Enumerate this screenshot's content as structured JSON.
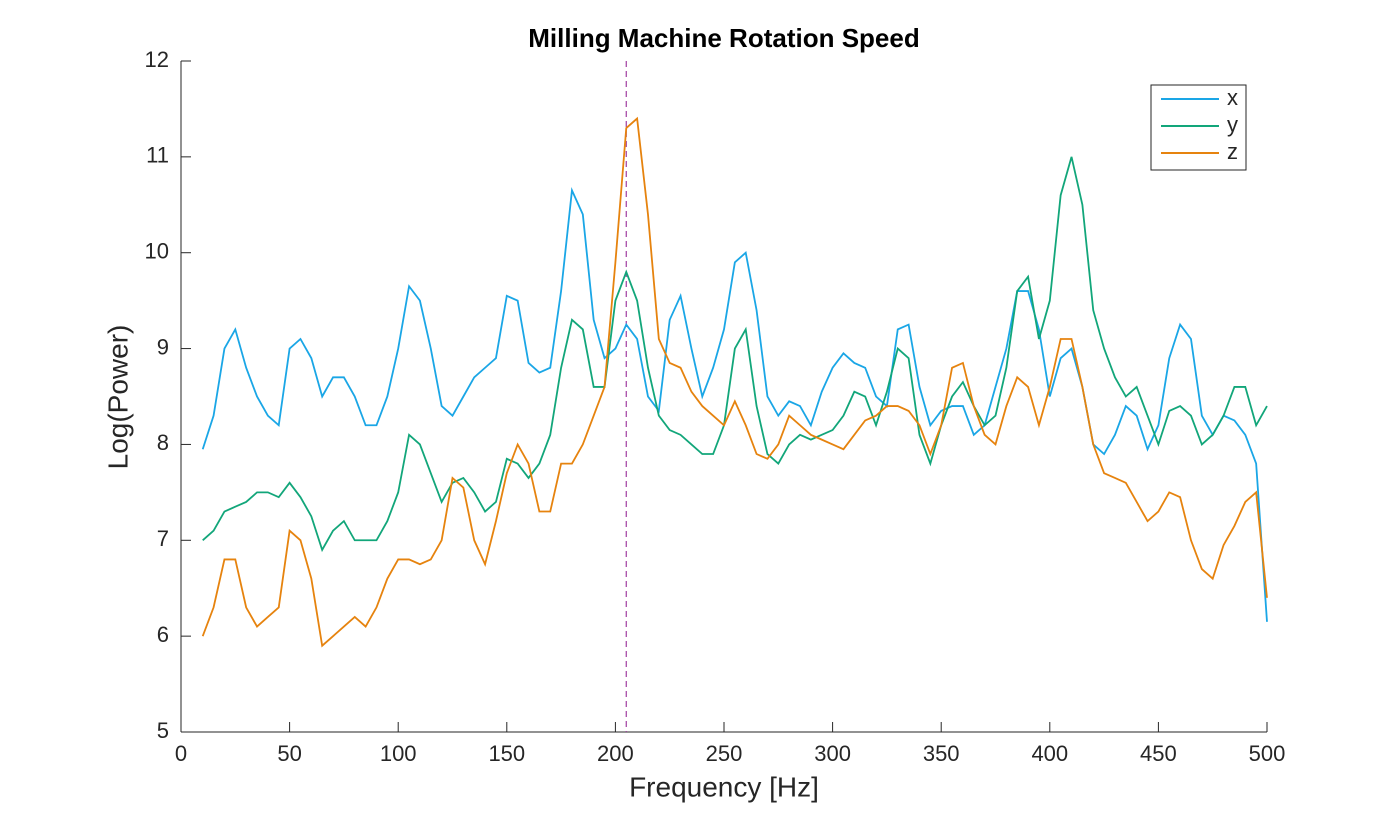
{
  "chart_data": {
    "type": "line",
    "title": "Milling Machine Rotation Speed",
    "x_label": "Frequency [Hz]",
    "y_label": "Log(Power)",
    "x": [
      10,
      15,
      20,
      25,
      30,
      35,
      40,
      45,
      50,
      55,
      60,
      65,
      70,
      75,
      80,
      85,
      90,
      95,
      100,
      105,
      110,
      115,
      120,
      125,
      130,
      135,
      140,
      145,
      150,
      155,
      160,
      165,
      170,
      175,
      180,
      185,
      190,
      195,
      200,
      205,
      210,
      215,
      220,
      225,
      230,
      235,
      240,
      245,
      250,
      255,
      260,
      265,
      270,
      275,
      280,
      285,
      290,
      295,
      300,
      305,
      310,
      315,
      320,
      325,
      330,
      335,
      340,
      345,
      350,
      355,
      360,
      365,
      370,
      375,
      380,
      385,
      390,
      395,
      400,
      405,
      410,
      415,
      420,
      425,
      430,
      435,
      440,
      445,
      450,
      455,
      460,
      465,
      470,
      475,
      480,
      485,
      490,
      495,
      500
    ],
    "series": [
      {
        "name": "x",
        "color": "#1aa6e6",
        "values": [
          7.95,
          8.3,
          9.0,
          9.2,
          8.8,
          8.5,
          8.3,
          8.2,
          9.0,
          9.1,
          8.9,
          8.5,
          8.7,
          8.7,
          8.5,
          8.2,
          8.2,
          8.5,
          9.0,
          9.65,
          9.5,
          9.0,
          8.4,
          8.3,
          8.5,
          8.7,
          8.8,
          8.9,
          9.55,
          9.5,
          8.85,
          8.75,
          8.8,
          9.6,
          10.65,
          10.4,
          9.3,
          8.9,
          9.0,
          9.25,
          9.1,
          8.5,
          8.35,
          9.3,
          9.55,
          9.0,
          8.5,
          8.8,
          9.2,
          9.9,
          10.0,
          9.4,
          8.5,
          8.3,
          8.45,
          8.4,
          8.2,
          8.55,
          8.8,
          8.95,
          8.85,
          8.8,
          8.5,
          8.4,
          9.2,
          9.25,
          8.6,
          8.2,
          8.35,
          8.4,
          8.4,
          8.1,
          8.2,
          8.6,
          9.0,
          9.6,
          9.6,
          9.2,
          8.5,
          8.9,
          9.0,
          8.6,
          8.0,
          7.9,
          8.1,
          8.4,
          8.3,
          7.95,
          8.2,
          8.9,
          9.25,
          9.1,
          8.3,
          8.1,
          8.3,
          8.25,
          8.1,
          7.8,
          6.15
        ]
      },
      {
        "name": "y",
        "color": "#12a67a",
        "values": [
          7.0,
          7.1,
          7.3,
          7.35,
          7.4,
          7.5,
          7.5,
          7.45,
          7.6,
          7.45,
          7.25,
          6.9,
          7.1,
          7.2,
          7.0,
          7.0,
          7.0,
          7.2,
          7.5,
          8.1,
          8.0,
          7.7,
          7.4,
          7.6,
          7.65,
          7.5,
          7.3,
          7.4,
          7.85,
          7.8,
          7.65,
          7.8,
          8.1,
          8.8,
          9.3,
          9.2,
          8.6,
          8.6,
          9.5,
          9.8,
          9.5,
          8.8,
          8.3,
          8.15,
          8.1,
          8.0,
          7.9,
          7.9,
          8.2,
          9.0,
          9.2,
          8.4,
          7.9,
          7.8,
          8.0,
          8.1,
          8.05,
          8.1,
          8.15,
          8.3,
          8.55,
          8.5,
          8.2,
          8.55,
          9.0,
          8.9,
          8.1,
          7.8,
          8.2,
          8.5,
          8.65,
          8.4,
          8.2,
          8.3,
          8.8,
          9.6,
          9.75,
          9.1,
          9.5,
          10.6,
          11.0,
          10.5,
          9.4,
          9.0,
          8.7,
          8.5,
          8.6,
          8.3,
          8.0,
          8.35,
          8.4,
          8.3,
          8.0,
          8.1,
          8.3,
          8.6,
          8.6,
          8.2,
          8.4
        ]
      },
      {
        "name": "z",
        "color": "#e6830e",
        "values": [
          6.0,
          6.3,
          6.8,
          6.8,
          6.3,
          6.1,
          6.2,
          6.3,
          7.1,
          7.0,
          6.6,
          5.9,
          6.0,
          6.1,
          6.2,
          6.1,
          6.3,
          6.6,
          6.8,
          6.8,
          6.75,
          6.8,
          7.0,
          7.65,
          7.55,
          7.0,
          6.75,
          7.2,
          7.7,
          8.0,
          7.8,
          7.3,
          7.3,
          7.8,
          7.8,
          8.0,
          8.3,
          8.6,
          9.9,
          11.3,
          11.4,
          10.4,
          9.1,
          8.85,
          8.8,
          8.55,
          8.4,
          8.3,
          8.2,
          8.45,
          8.2,
          7.9,
          7.85,
          8.0,
          8.3,
          8.2,
          8.1,
          8.05,
          8.0,
          7.95,
          8.1,
          8.25,
          8.3,
          8.4,
          8.4,
          8.35,
          8.2,
          7.9,
          8.2,
          8.8,
          8.85,
          8.4,
          8.1,
          8.0,
          8.4,
          8.7,
          8.6,
          8.2,
          8.6,
          9.1,
          9.1,
          8.6,
          8.0,
          7.7,
          7.65,
          7.6,
          7.4,
          7.2,
          7.3,
          7.5,
          7.45,
          7.0,
          6.7,
          6.6,
          6.95,
          7.15,
          7.4,
          7.5,
          6.4
        ]
      }
    ],
    "xlim": [
      0,
      500
    ],
    "xticks": [
      0,
      50,
      100,
      150,
      200,
      250,
      300,
      350,
      400,
      450,
      500
    ],
    "ylim": [
      5,
      12
    ],
    "yticks": [
      5,
      6,
      7,
      8,
      9,
      10,
      11,
      12
    ],
    "vline_x": 205,
    "vline_color": "#a03ca0",
    "legend": "upper right"
  }
}
